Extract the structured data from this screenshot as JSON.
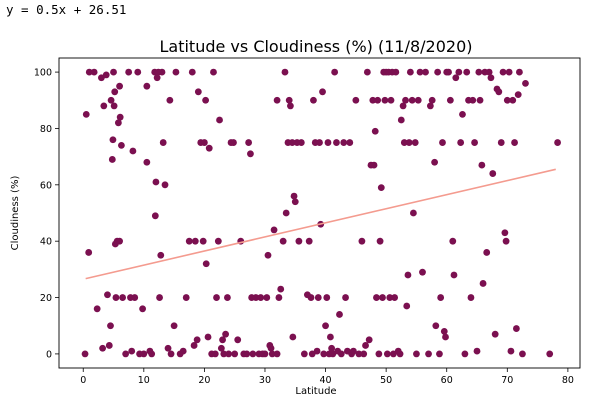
{
  "output_text": "y = 0.5x + 26.51",
  "chart_data": {
    "type": "scatter",
    "title": "Latitude vs Cloudiness (%) (11/8/2020)",
    "xlabel": "Latitude",
    "ylabel": "Cloudiness (%)",
    "xlim": [
      -4,
      82
    ],
    "ylim": [
      -5,
      105
    ],
    "xticks": [
      0,
      10,
      20,
      30,
      40,
      50,
      60,
      70,
      80
    ],
    "yticks": [
      0,
      20,
      40,
      60,
      80,
      100
    ],
    "grid": false,
    "legend": "none",
    "colors": {
      "points": "#7b1050",
      "regression": "#f49b8f"
    },
    "regression": {
      "slope": 0.5,
      "intercept": 26.51,
      "x_range": [
        0.4,
        78
      ]
    },
    "points": [
      [
        0.3,
        0
      ],
      [
        0.5,
        85
      ],
      [
        0.9,
        36
      ],
      [
        1,
        100
      ],
      [
        1.8,
        100
      ],
      [
        2.3,
        16
      ],
      [
        3,
        98
      ],
      [
        3.2,
        2
      ],
      [
        3.4,
        88
      ],
      [
        3.8,
        99
      ],
      [
        4,
        21
      ],
      [
        4.3,
        3
      ],
      [
        4.5,
        10
      ],
      [
        4.6,
        90
      ],
      [
        4.8,
        69
      ],
      [
        4.9,
        76
      ],
      [
        5,
        100
      ],
      [
        5.1,
        88
      ],
      [
        5.2,
        93
      ],
      [
        5.3,
        39
      ],
      [
        5.4,
        20
      ],
      [
        5.6,
        40
      ],
      [
        5.8,
        82
      ],
      [
        6,
        95
      ],
      [
        6,
        40
      ],
      [
        6.1,
        84
      ],
      [
        6.3,
        74
      ],
      [
        6.5,
        20
      ],
      [
        7,
        0
      ],
      [
        7.5,
        100
      ],
      [
        7.8,
        20
      ],
      [
        8,
        1
      ],
      [
        8.2,
        72
      ],
      [
        8.5,
        20
      ],
      [
        9,
        100
      ],
      [
        9.3,
        0
      ],
      [
        9.8,
        16
      ],
      [
        10,
        0
      ],
      [
        10.5,
        95
      ],
      [
        10.5,
        68
      ],
      [
        11,
        1
      ],
      [
        11.3,
        0
      ],
      [
        11.8,
        100
      ],
      [
        11.9,
        49
      ],
      [
        12,
        61
      ],
      [
        12.2,
        98
      ],
      [
        12.4,
        100
      ],
      [
        12.6,
        20
      ],
      [
        12.8,
        35
      ],
      [
        13,
        100
      ],
      [
        13.2,
        75
      ],
      [
        13.5,
        60
      ],
      [
        14,
        2
      ],
      [
        14.3,
        90
      ],
      [
        14.5,
        0
      ],
      [
        15,
        10
      ],
      [
        15.3,
        100
      ],
      [
        16,
        0
      ],
      [
        16.5,
        1
      ],
      [
        17,
        20
      ],
      [
        17.5,
        40
      ],
      [
        18,
        100
      ],
      [
        18.3,
        3
      ],
      [
        18.5,
        40
      ],
      [
        18.8,
        5
      ],
      [
        19,
        93
      ],
      [
        19.4,
        75
      ],
      [
        19.8,
        40
      ],
      [
        20,
        75
      ],
      [
        20.2,
        90
      ],
      [
        20.3,
        32
      ],
      [
        20.6,
        6
      ],
      [
        20.8,
        73
      ],
      [
        21.2,
        0
      ],
      [
        21.5,
        100
      ],
      [
        21.8,
        0
      ],
      [
        22,
        20
      ],
      [
        22.3,
        40
      ],
      [
        22.5,
        83
      ],
      [
        22.8,
        2
      ],
      [
        23,
        5
      ],
      [
        23.2,
        0
      ],
      [
        23.5,
        7
      ],
      [
        23.8,
        20
      ],
      [
        24,
        0
      ],
      [
        24.4,
        75
      ],
      [
        24.8,
        75
      ],
      [
        25,
        0
      ],
      [
        25.5,
        5
      ],
      [
        26,
        40
      ],
      [
        26.5,
        0
      ],
      [
        27,
        0
      ],
      [
        27.3,
        75
      ],
      [
        27.6,
        71
      ],
      [
        27.8,
        20
      ],
      [
        28,
        0
      ],
      [
        28.5,
        20
      ],
      [
        29,
        0
      ],
      [
        29.3,
        20
      ],
      [
        29.6,
        0
      ],
      [
        30,
        0
      ],
      [
        30.3,
        20
      ],
      [
        30.5,
        35
      ],
      [
        30.8,
        3
      ],
      [
        31,
        2
      ],
      [
        31.2,
        0
      ],
      [
        31.5,
        44
      ],
      [
        32,
        90
      ],
      [
        32,
        0
      ],
      [
        32.3,
        20
      ],
      [
        32.6,
        23
      ],
      [
        33,
        40
      ],
      [
        33.3,
        100
      ],
      [
        33.5,
        50
      ],
      [
        33.8,
        75
      ],
      [
        34,
        90
      ],
      [
        34.2,
        88
      ],
      [
        34.5,
        75
      ],
      [
        34.6,
        6
      ],
      [
        34.8,
        56
      ],
      [
        35,
        54
      ],
      [
        35.3,
        75
      ],
      [
        35.6,
        40
      ],
      [
        36,
        75
      ],
      [
        36.5,
        0
      ],
      [
        37,
        21
      ],
      [
        37.3,
        40
      ],
      [
        37.6,
        20
      ],
      [
        37.8,
        0
      ],
      [
        38,
        90
      ],
      [
        38.3,
        75
      ],
      [
        38.6,
        1
      ],
      [
        38.8,
        20
      ],
      [
        39,
        75
      ],
      [
        39.2,
        46
      ],
      [
        39.5,
        93
      ],
      [
        39.7,
        0
      ],
      [
        40,
        10
      ],
      [
        40.2,
        20
      ],
      [
        40.4,
        75
      ],
      [
        40.6,
        0
      ],
      [
        40.8,
        6
      ],
      [
        41,
        2
      ],
      [
        41.2,
        0
      ],
      [
        41.5,
        100
      ],
      [
        41.8,
        75
      ],
      [
        42,
        1
      ],
      [
        42.3,
        14
      ],
      [
        42.6,
        0
      ],
      [
        43,
        75
      ],
      [
        43.3,
        20
      ],
      [
        43.6,
        1
      ],
      [
        44,
        75
      ],
      [
        44.3,
        0
      ],
      [
        44.6,
        1
      ],
      [
        45,
        90
      ],
      [
        45.5,
        0
      ],
      [
        46,
        40
      ],
      [
        46.3,
        0
      ],
      [
        46.6,
        3
      ],
      [
        46.9,
        100
      ],
      [
        47.2,
        5
      ],
      [
        47.5,
        67
      ],
      [
        47.8,
        90
      ],
      [
        48,
        67
      ],
      [
        48.2,
        79
      ],
      [
        48.4,
        20
      ],
      [
        48.6,
        90
      ],
      [
        48.8,
        0
      ],
      [
        49,
        40
      ],
      [
        49.2,
        59
      ],
      [
        49.4,
        20
      ],
      [
        49.6,
        100
      ],
      [
        49.8,
        90
      ],
      [
        50,
        100
      ],
      [
        50.2,
        0
      ],
      [
        50.4,
        100
      ],
      [
        50.6,
        20
      ],
      [
        50.8,
        90
      ],
      [
        51,
        100
      ],
      [
        51.2,
        0
      ],
      [
        51.4,
        20
      ],
      [
        51.6,
        100
      ],
      [
        52,
        1
      ],
      [
        52.3,
        0
      ],
      [
        52.5,
        83
      ],
      [
        52.8,
        88
      ],
      [
        53,
        75
      ],
      [
        53.2,
        90
      ],
      [
        53.4,
        17
      ],
      [
        53.6,
        28
      ],
      [
        53.8,
        75
      ],
      [
        54,
        100
      ],
      [
        54.3,
        90
      ],
      [
        54.5,
        50
      ],
      [
        54.8,
        75
      ],
      [
        55,
        0
      ],
      [
        55.3,
        90
      ],
      [
        55.6,
        100
      ],
      [
        56,
        29
      ],
      [
        56.5,
        100
      ],
      [
        57,
        0
      ],
      [
        57.3,
        88
      ],
      [
        57.6,
        90
      ],
      [
        58,
        68
      ],
      [
        58.2,
        10
      ],
      [
        58.5,
        100
      ],
      [
        58.8,
        0
      ],
      [
        59,
        20
      ],
      [
        59.3,
        75
      ],
      [
        59.6,
        8
      ],
      [
        59.8,
        6
      ],
      [
        60,
        100
      ],
      [
        60.3,
        100
      ],
      [
        60.6,
        90
      ],
      [
        61,
        40
      ],
      [
        61.2,
        28
      ],
      [
        61.5,
        98
      ],
      [
        62,
        100
      ],
      [
        62.3,
        75
      ],
      [
        62.6,
        85
      ],
      [
        63,
        0
      ],
      [
        63.3,
        100
      ],
      [
        63.6,
        90
      ],
      [
        64,
        20
      ],
      [
        64.3,
        90
      ],
      [
        64.6,
        75
      ],
      [
        65,
        1
      ],
      [
        65.3,
        100
      ],
      [
        65.5,
        90
      ],
      [
        65.8,
        67
      ],
      [
        66,
        25
      ],
      [
        66.3,
        100
      ],
      [
        66.6,
        36
      ],
      [
        67,
        100
      ],
      [
        67.3,
        98
      ],
      [
        67.6,
        64
      ],
      [
        68,
        7
      ],
      [
        68.3,
        94
      ],
      [
        68.6,
        93
      ],
      [
        69,
        75
      ],
      [
        69.3,
        100
      ],
      [
        69.6,
        43
      ],
      [
        69.8,
        40
      ],
      [
        70,
        90
      ],
      [
        70.3,
        100
      ],
      [
        70.6,
        1
      ],
      [
        70.9,
        90
      ],
      [
        71.2,
        75
      ],
      [
        71.5,
        9
      ],
      [
        71.8,
        92
      ],
      [
        72,
        100
      ],
      [
        72.5,
        0
      ],
      [
        73,
        96
      ],
      [
        77,
        0
      ],
      [
        78.3,
        75
      ]
    ]
  }
}
